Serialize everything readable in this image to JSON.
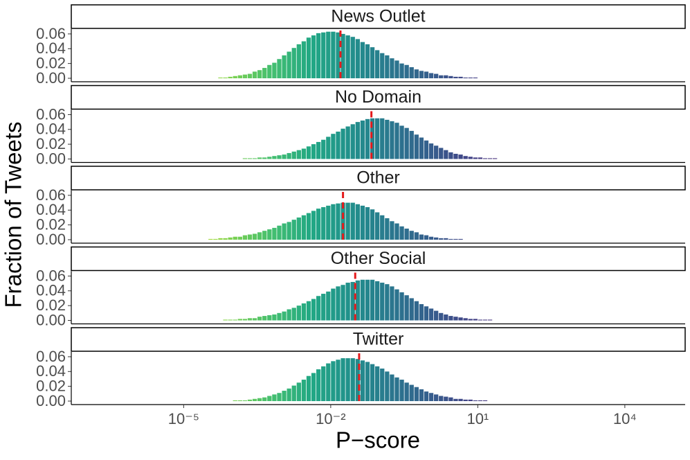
{
  "chart_data": {
    "type": "histogram",
    "x_label": "P−score",
    "y_label": "Fraction of Tweets",
    "xscale": "log",
    "xlim": [
      5.1e-08,
      170000.0
    ],
    "xticks": [
      {
        "value": 1e-05,
        "label": "10⁻⁵"
      },
      {
        "value": 0.01,
        "label": "10⁻²"
      },
      {
        "value": 10,
        "label": "10¹"
      },
      {
        "value": 10000,
        "label": "10⁴"
      }
    ],
    "ylim": [
      -0.0047,
      0.0665
    ],
    "yticks": [
      {
        "value": 0,
        "label": "0.00"
      },
      0.02,
      0.04,
      0.06
    ],
    "colormap": "viridis",
    "median_color": "#e41a1c",
    "bins": [
      3.162e-05,
      3.981e-05,
      5.012e-05,
      6.31e-05,
      7.943e-05,
      0.0001,
      0.0001259,
      0.0001585,
      0.0001995,
      0.0002512,
      0.0003162,
      0.0003981,
      0.0005012,
      0.000631,
      0.0007943,
      0.001,
      0.001259,
      0.001585,
      0.001995,
      0.002512,
      0.003162,
      0.003981,
      0.005012,
      0.00631,
      0.007943,
      0.01,
      0.01259,
      0.01585,
      0.01995,
      0.02512,
      0.03162,
      0.03981,
      0.05012,
      0.0631,
      0.07943,
      0.1,
      0.1259,
      0.1585,
      0.1995,
      0.2512,
      0.3162,
      0.3981,
      0.5012,
      0.631,
      0.7943,
      1,
      1.259,
      1.585,
      1.995,
      2.512,
      3.162,
      3.981,
      5.012,
      6.31,
      7.943,
      10,
      12.59,
      15.85,
      19.95,
      25.12,
      31.62,
      39.81,
      50.12,
      63.1,
      79.43,
      100,
      125.9,
      158.5,
      199.5,
      251.2,
      316.2,
      398.1,
      501.2,
      631,
      794.3,
      1000,
      1259,
      1585,
      1995,
      2512,
      3162
    ],
    "series": [
      {
        "name": "News Outlet",
        "median": 0.0158,
        "values": [
          0,
          0,
          0.001,
          0.001,
          0.002,
          0.003,
          0.004,
          0.005,
          0.006,
          0.009,
          0.011,
          0.014,
          0.018,
          0.021,
          0.026,
          0.031,
          0.036,
          0.041,
          0.046,
          0.05,
          0.055,
          0.058,
          0.061,
          0.062,
          0.063,
          0.063,
          0.062,
          0.06,
          0.058,
          0.056,
          0.053,
          0.049,
          0.046,
          0.042,
          0.038,
          0.034,
          0.031,
          0.027,
          0.024,
          0.02,
          0.018,
          0.015,
          0.012,
          0.01,
          0.009,
          0.007,
          0.006,
          0.004,
          0.004,
          0.003,
          0.002,
          0.002,
          0.001,
          0.001,
          0.001,
          0,
          0,
          0,
          0,
          0,
          0,
          0,
          0,
          0,
          0,
          0,
          0,
          0,
          0,
          0,
          0,
          0,
          0,
          0,
          0,
          0,
          0,
          0,
          0,
          0
        ]
      },
      {
        "name": "No Domain",
        "median": 0.0676,
        "values": [
          0,
          0,
          0,
          0,
          0,
          0,
          0,
          0.001,
          0.001,
          0.001,
          0.002,
          0.002,
          0.003,
          0.004,
          0.005,
          0.006,
          0.008,
          0.01,
          0.012,
          0.014,
          0.017,
          0.02,
          0.023,
          0.026,
          0.03,
          0.034,
          0.037,
          0.041,
          0.044,
          0.047,
          0.05,
          0.052,
          0.054,
          0.055,
          0.055,
          0.055,
          0.053,
          0.051,
          0.049,
          0.045,
          0.042,
          0.038,
          0.033,
          0.029,
          0.025,
          0.021,
          0.018,
          0.015,
          0.012,
          0.009,
          0.007,
          0.006,
          0.004,
          0.003,
          0.002,
          0.002,
          0.001,
          0.001,
          0.001,
          0,
          0,
          0,
          0,
          0,
          0,
          0,
          0,
          0,
          0,
          0,
          0,
          0,
          0,
          0,
          0,
          0,
          0,
          0,
          0,
          0
        ]
      },
      {
        "name": "Other",
        "median": 0.0178,
        "values": [
          0.001,
          0.001,
          0.002,
          0.002,
          0.003,
          0.004,
          0.004,
          0.006,
          0.007,
          0.008,
          0.01,
          0.012,
          0.014,
          0.016,
          0.019,
          0.022,
          0.024,
          0.027,
          0.03,
          0.033,
          0.036,
          0.039,
          0.042,
          0.044,
          0.046,
          0.048,
          0.049,
          0.05,
          0.05,
          0.05,
          0.048,
          0.046,
          0.044,
          0.041,
          0.037,
          0.033,
          0.029,
          0.025,
          0.022,
          0.018,
          0.015,
          0.012,
          0.01,
          0.007,
          0.006,
          0.004,
          0.003,
          0.002,
          0.002,
          0.001,
          0.001,
          0.001,
          0,
          0,
          0,
          0,
          0,
          0,
          0,
          0,
          0,
          0,
          0,
          0,
          0,
          0,
          0,
          0,
          0,
          0,
          0,
          0,
          0,
          0,
          0,
          0,
          0,
          0,
          0,
          0
        ]
      },
      {
        "name": "Other Social",
        "median": 0.0316,
        "values": [
          0,
          0,
          0,
          0.001,
          0.001,
          0.001,
          0.002,
          0.002,
          0.003,
          0.003,
          0.005,
          0.006,
          0.007,
          0.008,
          0.01,
          0.012,
          0.015,
          0.017,
          0.02,
          0.023,
          0.026,
          0.029,
          0.033,
          0.036,
          0.039,
          0.043,
          0.046,
          0.048,
          0.051,
          0.052,
          0.054,
          0.055,
          0.055,
          0.055,
          0.053,
          0.051,
          0.049,
          0.046,
          0.042,
          0.038,
          0.034,
          0.03,
          0.026,
          0.022,
          0.019,
          0.016,
          0.013,
          0.01,
          0.008,
          0.006,
          0.005,
          0.004,
          0.003,
          0.002,
          0.002,
          0.001,
          0.001,
          0.001,
          0,
          0,
          0,
          0,
          0,
          0,
          0,
          0,
          0,
          0,
          0,
          0,
          0,
          0,
          0,
          0,
          0,
          0,
          0,
          0,
          0,
          0
        ]
      },
      {
        "name": "Twitter",
        "median": 0.038,
        "values": [
          0,
          0,
          0,
          0,
          0,
          0.001,
          0.001,
          0.001,
          0.002,
          0.003,
          0.004,
          0.005,
          0.007,
          0.009,
          0.011,
          0.014,
          0.017,
          0.021,
          0.025,
          0.029,
          0.034,
          0.038,
          0.043,
          0.047,
          0.051,
          0.054,
          0.056,
          0.058,
          0.058,
          0.058,
          0.057,
          0.055,
          0.053,
          0.05,
          0.047,
          0.044,
          0.04,
          0.036,
          0.032,
          0.029,
          0.025,
          0.022,
          0.019,
          0.016,
          0.013,
          0.011,
          0.009,
          0.007,
          0.006,
          0.005,
          0.003,
          0.003,
          0.002,
          0.002,
          0.001,
          0.001,
          0.001,
          0,
          0,
          0,
          0,
          0,
          0,
          0,
          0,
          0,
          0,
          0,
          0,
          0,
          0,
          0,
          0,
          0,
          0,
          0,
          0,
          0,
          0,
          0
        ]
      }
    ]
  }
}
